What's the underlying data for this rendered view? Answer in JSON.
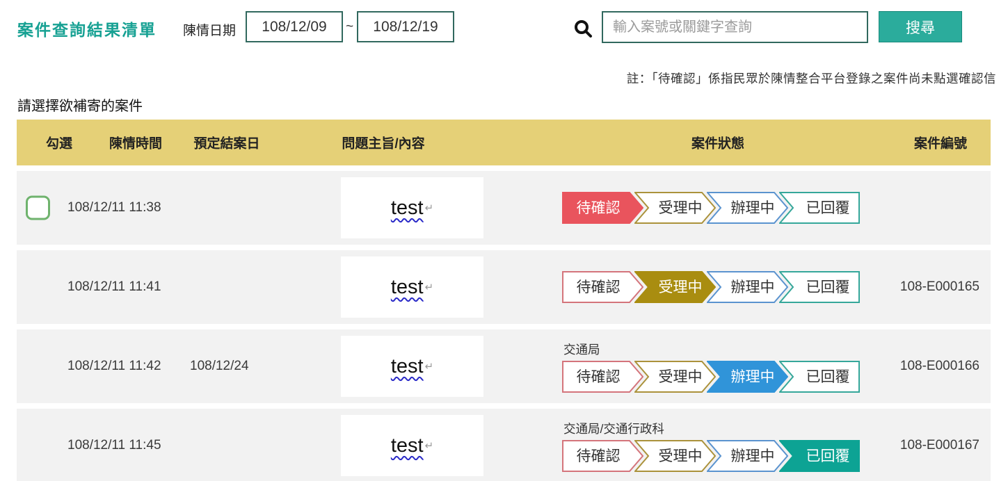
{
  "page": {
    "title": "案件查詢結果清單",
    "date_filter": {
      "label": "陳情日期",
      "from": "108/12/09",
      "separator": "~",
      "to": "108/12/19"
    },
    "search": {
      "placeholder": "輸入案號或關鍵字查詢",
      "button_label": "搜尋",
      "icon": "search-icon"
    },
    "note": "註：「待確認」係指民眾於陳情整合平台登錄之案件尚未點選確認信",
    "instruction": "請選擇欲補寄的案件"
  },
  "table": {
    "headers": [
      "勾選",
      "陳情時間",
      "預定結案日",
      "問題主旨/內容",
      "案件狀態",
      "案件編號"
    ],
    "status_steps": [
      {
        "label": "待確認",
        "fill": "#e9545d",
        "border": "#d4747b"
      },
      {
        "label": "受理中",
        "fill": "#a98d10",
        "border": "#ab923b"
      },
      {
        "label": "辦理中",
        "fill": "#3094d9",
        "border": "#5a93cf"
      },
      {
        "label": "已回覆",
        "fill": "#0da394",
        "border": "#35a79a"
      }
    ],
    "subject_return_mark": "↵",
    "rows": [
      {
        "checkbox": true,
        "time": "108/12/11 11:38",
        "due_date": "",
        "subject": "test",
        "department": "",
        "active_step": 0,
        "case_no": ""
      },
      {
        "checkbox": false,
        "time": "108/12/11 11:41",
        "due_date": "",
        "subject": "test",
        "department": "",
        "active_step": 1,
        "case_no": "108-E000165"
      },
      {
        "checkbox": false,
        "time": "108/12/11 11:42",
        "due_date": "108/12/24",
        "subject": "test",
        "department": "交通局",
        "active_step": 2,
        "case_no": "108-E000166"
      },
      {
        "checkbox": false,
        "time": "108/12/11 11:45",
        "due_date": "",
        "subject": "test",
        "department": "交通局/交通行政科",
        "active_step": 3,
        "case_no": "108-E000167"
      }
    ]
  },
  "colors": {
    "title": "#17a193",
    "header_bg": "#e5d077",
    "row_bg": "#f2f2f2",
    "button_bg": "#2bac9c",
    "input_border": "#31685e",
    "checkbox_border": "#6fb36d",
    "inactive_step_text": "#333333",
    "active_step_text": "#ffffff"
  }
}
